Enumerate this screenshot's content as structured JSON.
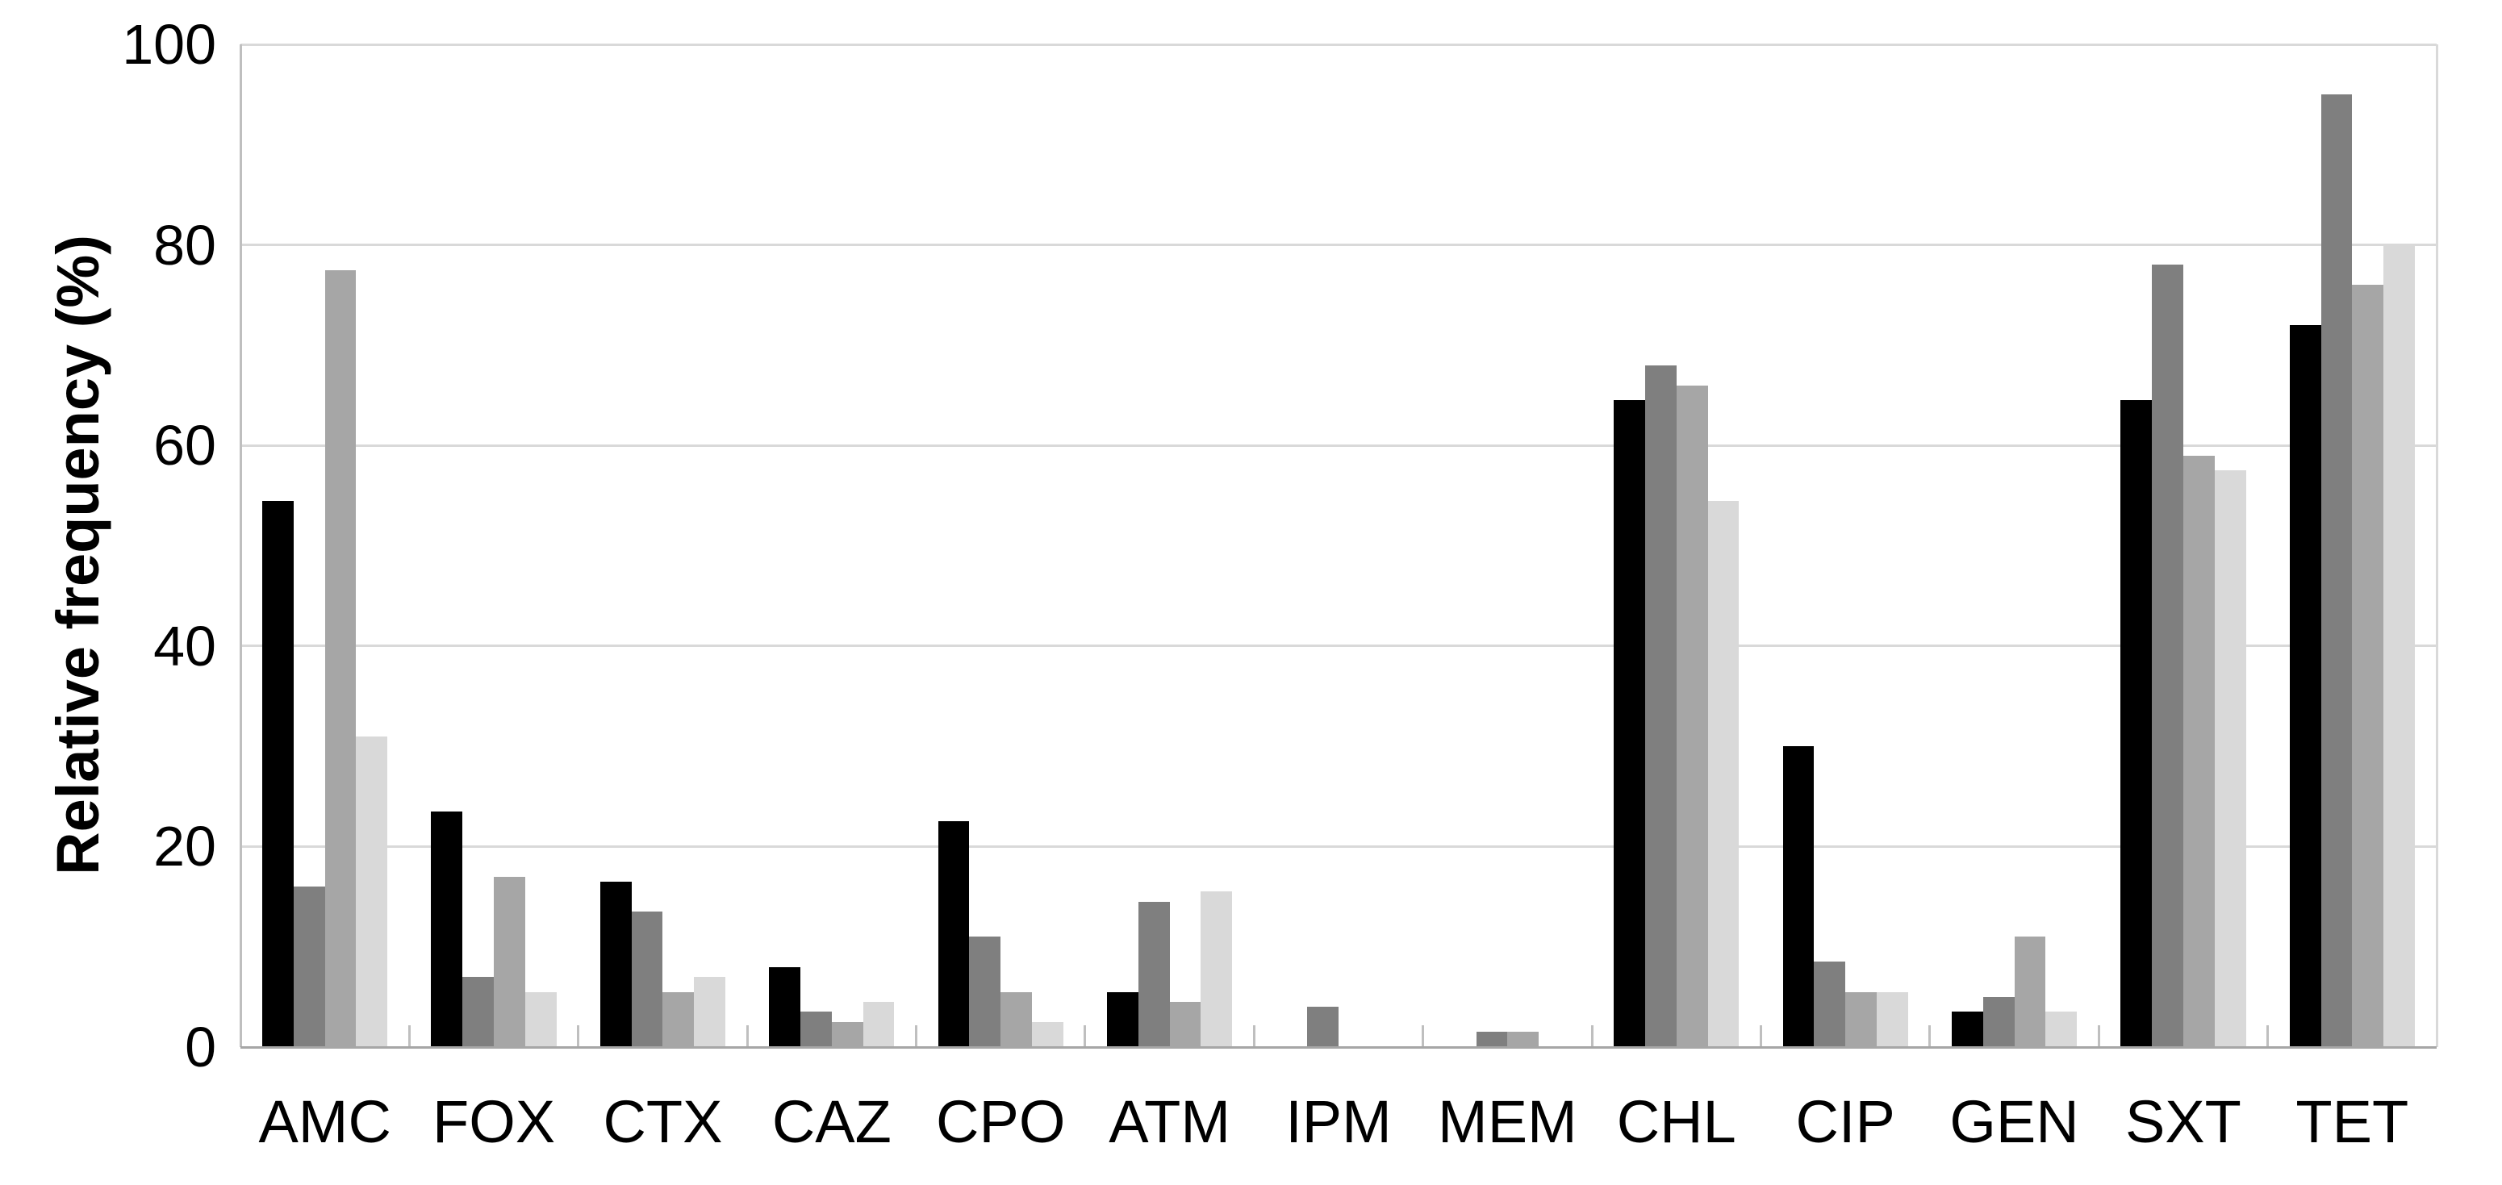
{
  "chart_data": {
    "type": "bar",
    "title": "",
    "xlabel": "",
    "ylabel": "Relative frequency (%)",
    "ylim": [
      0,
      100
    ],
    "yticks": [
      0,
      20,
      40,
      60,
      80,
      100
    ],
    "grid": true,
    "legend_position": "none",
    "categories": [
      "AMC",
      "FOX",
      "CTX",
      "CAZ",
      "CPO",
      "ATM",
      "IPM",
      "MEM",
      "CHL",
      "CIP",
      "GEN",
      "SXT",
      "TET"
    ],
    "series": [
      {
        "name": "black",
        "color": "#000000",
        "values": [
          54.5,
          23.5,
          16.5,
          8,
          22.5,
          5.5,
          0,
          0,
          64.5,
          30,
          3.5,
          64.5,
          72
        ]
      },
      {
        "name": "dark-gray",
        "color": "#7f7f7f",
        "values": [
          16,
          7,
          13.5,
          3.5,
          11,
          14.5,
          4,
          1.5,
          68,
          8.5,
          5,
          78,
          95
        ]
      },
      {
        "name": "medium-gray",
        "color": "#a6a6a6",
        "values": [
          77.5,
          17,
          5.5,
          2.5,
          5.5,
          4.5,
          0,
          1.5,
          66,
          5.5,
          11,
          59,
          76
        ]
      },
      {
        "name": "light-gray",
        "color": "#d9d9d9",
        "values": [
          31,
          5.5,
          7,
          4.5,
          2.5,
          15.5,
          0,
          0,
          54.5,
          5.5,
          3.5,
          57.5,
          80
        ]
      }
    ],
    "style": {
      "gridline_color": "#d9d9d9",
      "baseline_color": "#a6a6a6",
      "axis_line_color": "#bfbfbf",
      "tick_color": "#bfbfbf",
      "text_color": "#000000"
    }
  }
}
